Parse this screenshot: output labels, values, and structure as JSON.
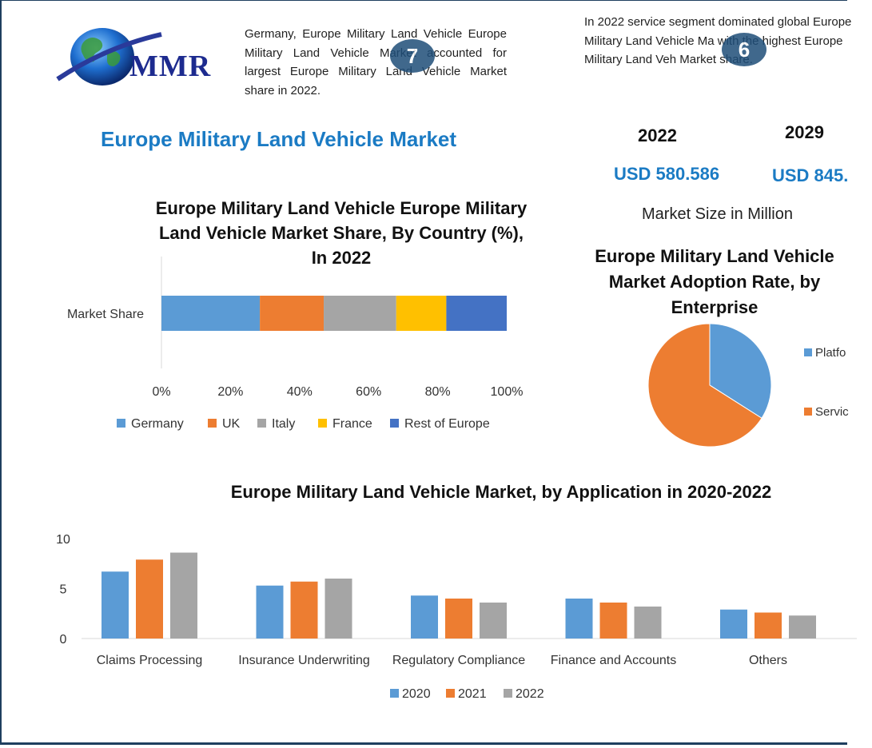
{
  "brand": {
    "logo_text": "MMR"
  },
  "notes": {
    "left": "Germany, Europe Military Land Vehicle Europe Military Land Vehicle Market accounted for largest Europe Military Land Vehicle Market share in 2022.",
    "right": "In 2022 service segment dominated global Europe Military Land Vehicle Ma with the highest Europe Military Land Veh Market share."
  },
  "main_title": "Europe Military Land Vehicle Market",
  "market_size": {
    "year_start": "2022",
    "year_end": "2029",
    "value_start": "USD 580.586",
    "value_end": "USD 845.",
    "caption": "Market Size in Million"
  },
  "colors": {
    "blue": "#5b9bd5",
    "orange": "#ed7d31",
    "gray": "#a5a5a5",
    "gold": "#ffc000",
    "dark_blue": "#4472c4",
    "title_blue": "#1b7bc4"
  },
  "chart_data": [
    {
      "type": "bar",
      "orientation": "horizontal-stacked-100",
      "title_lines": [
        "Europe Military Land Vehicle Europe Military",
        "Land Vehicle Market Share, By Country (%),",
        "In 2022"
      ],
      "categories": [
        "Market Share"
      ],
      "series": [
        {
          "name": "Germany",
          "values": [
            28.5
          ]
        },
        {
          "name": "UK",
          "values": [
            18.5
          ]
        },
        {
          "name": "Italy",
          "values": [
            21
          ]
        },
        {
          "name": "France",
          "values": [
            14.5
          ]
        },
        {
          "name": "Rest of Europe",
          "values": [
            17.5
          ]
        }
      ],
      "xticks": [
        "0%",
        "20%",
        "40%",
        "60%",
        "80%",
        "100%"
      ],
      "xlim": [
        0,
        100
      ],
      "legend": "bottom"
    },
    {
      "type": "pie",
      "title_lines": [
        "Europe Military Land Vehicle",
        "Market Adoption Rate, by",
        "Enterprise"
      ],
      "labels": [
        "Platfo",
        "Servic"
      ],
      "values": [
        34,
        66
      ],
      "legend": "right"
    },
    {
      "type": "bar",
      "title": "Europe Military Land Vehicle Market, by Application in 2020-2022",
      "categories": [
        "Claims Processing",
        "Insurance Underwriting",
        "Regulatory Compliance",
        "Finance and Accounts",
        "Others"
      ],
      "series": [
        {
          "name": "2020",
          "values": [
            6.7,
            5.3,
            4.3,
            4.0,
            2.9
          ]
        },
        {
          "name": "2021",
          "values": [
            7.9,
            5.7,
            4.0,
            3.6,
            2.6
          ]
        },
        {
          "name": "2022",
          "values": [
            8.6,
            6.0,
            3.6,
            3.2,
            2.3
          ]
        }
      ],
      "yticks": [
        "0",
        "5",
        "10"
      ],
      "ylim": [
        0,
        10
      ],
      "legend": "bottom"
    }
  ]
}
